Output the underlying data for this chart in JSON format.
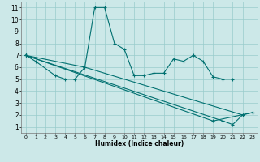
{
  "xlabel": "Humidex (Indice chaleur)",
  "bg_color": "#cce8e8",
  "grid_color": "#99cccc",
  "line_color": "#007070",
  "xlim": [
    -0.5,
    23.5
  ],
  "ylim": [
    0.5,
    11.5
  ],
  "xticks": [
    0,
    1,
    2,
    3,
    4,
    5,
    6,
    7,
    8,
    9,
    10,
    11,
    12,
    13,
    14,
    15,
    16,
    17,
    18,
    19,
    20,
    21,
    22,
    23
  ],
  "yticks": [
    1,
    2,
    3,
    4,
    5,
    6,
    7,
    8,
    9,
    10,
    11
  ],
  "series": [
    {
      "x": [
        0,
        1,
        3,
        4,
        5,
        6,
        7,
        8,
        9,
        10,
        11,
        12,
        13,
        14,
        15,
        16,
        17,
        18,
        19,
        20,
        21
      ],
      "y": [
        7.0,
        6.5,
        5.3,
        5.0,
        5.0,
        6.0,
        11.0,
        11.0,
        8.0,
        7.5,
        5.3,
        5.3,
        5.5,
        5.5,
        6.7,
        6.5,
        7.0,
        6.5,
        5.2,
        5.0,
        5.0
      ]
    },
    {
      "x": [
        0,
        6,
        22
      ],
      "y": [
        7.0,
        6.0,
        2.0
      ]
    },
    {
      "x": [
        0,
        20,
        21,
        22,
        23
      ],
      "y": [
        7.0,
        1.5,
        1.2,
        2.0,
        2.2
      ]
    },
    {
      "x": [
        0,
        19,
        23
      ],
      "y": [
        7.0,
        1.5,
        2.2
      ]
    }
  ]
}
